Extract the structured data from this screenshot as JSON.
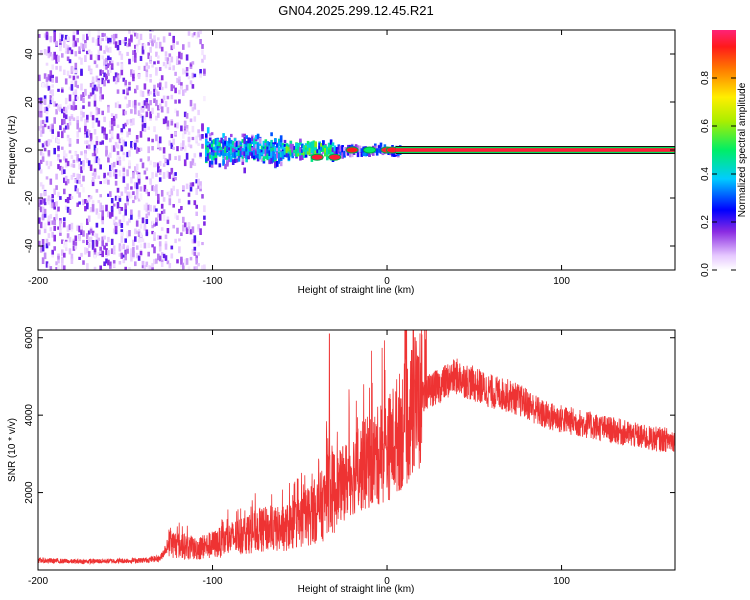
{
  "chart_data": [
    {
      "type": "heatmap",
      "title": "GN04.2025.299.12.45.R21",
      "xlabel": "Height of straight line (km)",
      "ylabel": "Frequency (Hz)",
      "xlim": [
        -200,
        165
      ],
      "ylim": [
        -50,
        50
      ],
      "x_ticks": [
        -200,
        -100,
        0,
        100
      ],
      "y_ticks": [
        -40,
        -20,
        0,
        20,
        40
      ],
      "colorbar": {
        "label": "Normalized spectral amplitude",
        "range": [
          0,
          1
        ],
        "ticks": [
          "0.0",
          "0.2",
          "0.4",
          "0.6",
          "0.8"
        ]
      },
      "features": {
        "noise_region_x": [
          -200,
          -105
        ],
        "signal_onset_x": -30,
        "steady_line_x": [
          5,
          165
        ],
        "steady_line_frequency_hz": 0,
        "steady_line_amplitude": 1.0
      }
    },
    {
      "type": "line",
      "xlabel": "Height of straight line (km)",
      "ylabel": "SNR (10 * v/v)",
      "xlim": [
        -200,
        165
      ],
      "ylim": [
        0,
        6200
      ],
      "x_ticks": [
        -200,
        -100,
        0,
        100
      ],
      "y_ticks": [
        2000,
        4000,
        6000
      ],
      "series": [
        {
          "name": "SNR",
          "color": "#ee3333",
          "x": [
            -200,
            -180,
            -160,
            -140,
            -130,
            -125,
            -110,
            -100,
            -90,
            -80,
            -70,
            -60,
            -50,
            -42,
            -36,
            -34,
            -30,
            -20,
            -10,
            0,
            5,
            10,
            15,
            20,
            25,
            30,
            35,
            40,
            50,
            60,
            70,
            80,
            90,
            100,
            110,
            120,
            130,
            140,
            150,
            165
          ],
          "values": [
            250,
            220,
            230,
            250,
            300,
            700,
            550,
            650,
            800,
            950,
            1050,
            1050,
            1250,
            1500,
            1700,
            2200,
            2000,
            2500,
            2800,
            3100,
            3450,
            3750,
            4100,
            4500,
            4650,
            4750,
            4900,
            5000,
            4800,
            4600,
            4500,
            4300,
            4000,
            3900,
            3800,
            3700,
            3600,
            3500,
            3400,
            3350
          ],
          "spikes": [
            {
              "x": -33,
              "value": 6100
            },
            {
              "x": 16,
              "value": 6000
            },
            {
              "x": 22,
              "value": 5950
            }
          ]
        }
      ]
    }
  ]
}
